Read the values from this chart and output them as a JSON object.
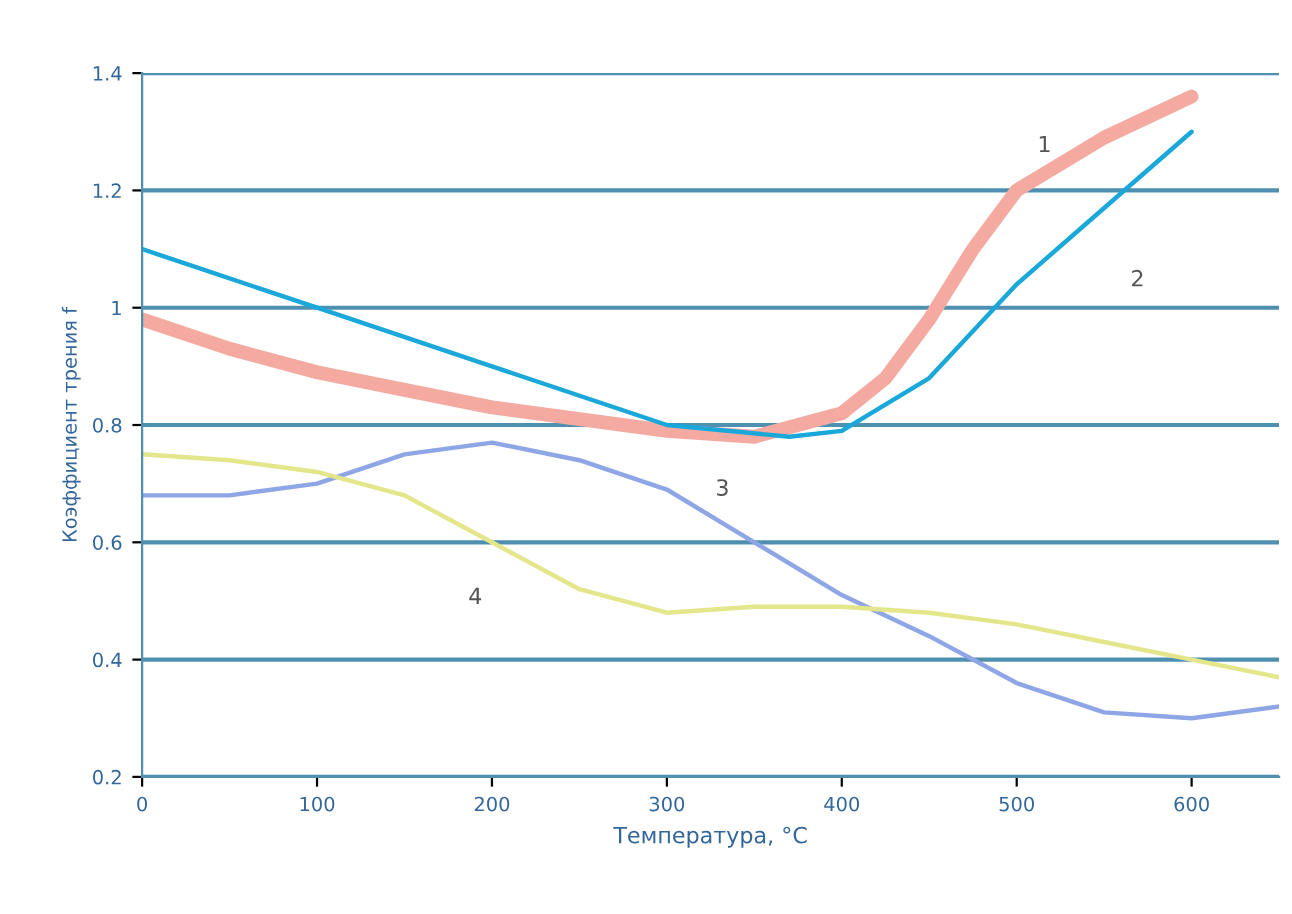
{
  "chart_data": {
    "type": "line",
    "xlabel": "Температура, °C",
    "ylabel": "Коэффициент трения f",
    "xlim": [
      0,
      650
    ],
    "ylim": [
      0.2,
      1.4
    ],
    "xticks": [
      0,
      100,
      200,
      300,
      400,
      500,
      600
    ],
    "yticks": [
      0.2,
      0.4,
      0.6,
      0.8,
      1,
      1.2,
      1.4
    ],
    "grid": "y",
    "legend": false,
    "series": [
      {
        "name": "1",
        "color": "#f4aaa0",
        "x": [
          0,
          50,
          100,
          150,
          200,
          250,
          300,
          350,
          400,
          425,
          450,
          475,
          500,
          550,
          600
        ],
        "values": [
          0.98,
          0.93,
          0.89,
          0.86,
          0.83,
          0.81,
          0.79,
          0.78,
          0.82,
          0.88,
          0.98,
          1.1,
          1.2,
          1.29,
          1.36
        ]
      },
      {
        "name": "2",
        "color": "#1aa7d9",
        "x": [
          0,
          100,
          200,
          300,
          370,
          400,
          450,
          500,
          550,
          600
        ],
        "values": [
          1.1,
          1.0,
          0.9,
          0.8,
          0.78,
          0.79,
          0.88,
          1.04,
          1.17,
          1.3
        ]
      },
      {
        "name": "3",
        "color": "#8fa6e6",
        "x": [
          0,
          50,
          100,
          150,
          200,
          250,
          300,
          350,
          400,
          450,
          500,
          550,
          600,
          650
        ],
        "values": [
          0.68,
          0.68,
          0.7,
          0.75,
          0.77,
          0.74,
          0.69,
          0.6,
          0.51,
          0.44,
          0.36,
          0.31,
          0.3,
          0.32
        ]
      },
      {
        "name": "4",
        "color": "#e3e68a",
        "x": [
          0,
          50,
          100,
          150,
          200,
          250,
          300,
          350,
          400,
          450,
          500,
          550,
          600,
          650
        ],
        "values": [
          0.75,
          0.74,
          0.72,
          0.68,
          0.6,
          0.52,
          0.48,
          0.49,
          0.49,
          0.48,
          0.46,
          0.43,
          0.4,
          0.37
        ]
      }
    ]
  }
}
